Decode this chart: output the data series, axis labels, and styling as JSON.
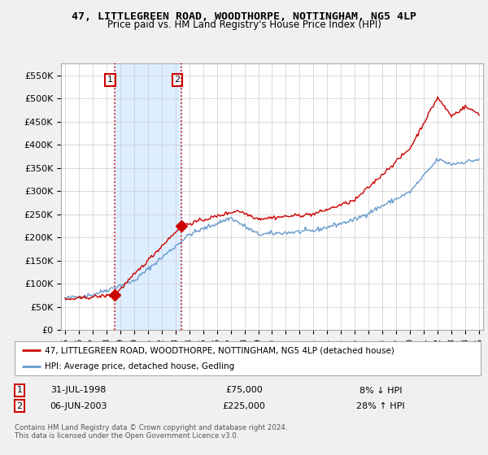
{
  "title": "47, LITTLEGREEN ROAD, WOODTHORPE, NOTTINGHAM, NG5 4LP",
  "subtitle": "Price paid vs. HM Land Registry's House Price Index (HPI)",
  "red_label": "47, LITTLEGREEN ROAD, WOODTHORPE, NOTTINGHAM, NG5 4LP (detached house)",
  "blue_label": "HPI: Average price, detached house, Gedling",
  "transaction1_label": "31-JUL-1998",
  "transaction1_price": "£75,000",
  "transaction1_hpi": "8% ↓ HPI",
  "transaction2_label": "06-JUN-2003",
  "transaction2_price": "£225,000",
  "transaction2_hpi": "28% ↑ HPI",
  "copyright": "Contains HM Land Registry data © Crown copyright and database right 2024.\nThis data is licensed under the Open Government Licence v3.0.",
  "ylim": [
    0,
    575000
  ],
  "yticks": [
    0,
    50000,
    100000,
    150000,
    200000,
    250000,
    300000,
    350000,
    400000,
    450000,
    500000,
    550000
  ],
  "ytick_labels": [
    "£0",
    "£50K",
    "£100K",
    "£150K",
    "£200K",
    "£250K",
    "£300K",
    "£350K",
    "£400K",
    "£450K",
    "£500K",
    "£550K"
  ],
  "background_color": "#f0f0f0",
  "plot_bg_color": "#ffffff",
  "grid_color": "#cccccc",
  "red_color": "#cc0000",
  "blue_color": "#6699cc",
  "shade_color": "#ddeeff",
  "marker1_x": 1998.58,
  "marker1_y": 75000,
  "marker2_x": 2003.43,
  "marker2_y": 225000,
  "xlim_left": 1994.7,
  "xlim_right": 2025.3
}
